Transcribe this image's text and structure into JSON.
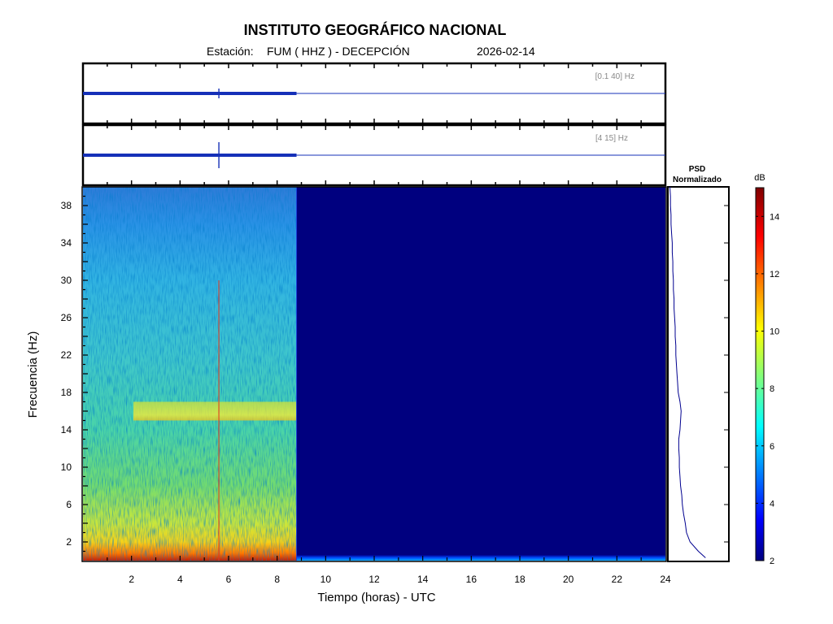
{
  "header": {
    "title": "INSTITUTO GEOGRÁFICO NACIONAL",
    "station_label": "Estación:",
    "station": "FUM ( HHZ ) - DECEPCIÓN",
    "date": "2026-02-14"
  },
  "chart_data": [
    {
      "type": "line",
      "name": "waveform-broadband",
      "band_label": "[0.1 40] Hz",
      "x_range": [
        0,
        24
      ],
      "data_end_hours": 8.8,
      "event_hours": 5.6
    },
    {
      "type": "line",
      "name": "waveform-filtered",
      "band_label": "[4 15] Hz",
      "x_range": [
        0,
        24
      ],
      "data_end_hours": 8.8,
      "event_hours": 5.6
    },
    {
      "type": "heatmap",
      "name": "spectrogram",
      "xlabel": "Tiempo (horas) - UTC",
      "ylabel": "Frecuencia  (Hz)",
      "xlim": [
        0,
        24
      ],
      "ylim": [
        0,
        40
      ],
      "x_ticks": [
        2,
        4,
        6,
        8,
        10,
        12,
        14,
        16,
        18,
        20,
        22,
        24
      ],
      "y_ticks": [
        2,
        6,
        10,
        14,
        18,
        22,
        26,
        30,
        34,
        38
      ],
      "data_end_hours": 8.8,
      "event_hours": 5.6,
      "highlights": [
        {
          "freq_range": [
            15,
            17
          ],
          "level": "high"
        },
        {
          "freq_range": [
            0,
            4
          ],
          "level": "very-high"
        }
      ]
    },
    {
      "type": "line",
      "name": "psd",
      "title_line1": "PSD",
      "title_line2": "Normalizado",
      "freq": [
        0.3,
        1,
        2,
        3,
        4,
        5,
        6,
        7,
        8,
        9,
        10,
        11,
        12,
        13,
        14,
        15,
        16,
        17,
        18,
        19,
        20,
        21,
        22,
        23,
        24,
        25,
        26,
        27,
        28,
        29,
        30,
        31,
        32,
        33,
        34,
        35,
        36,
        37,
        38,
        39,
        40
      ],
      "value": [
        0.62,
        0.5,
        0.36,
        0.3,
        0.28,
        0.25,
        0.23,
        0.22,
        0.2,
        0.19,
        0.18,
        0.18,
        0.17,
        0.17,
        0.19,
        0.2,
        0.21,
        0.19,
        0.16,
        0.15,
        0.14,
        0.13,
        0.12,
        0.12,
        0.11,
        0.11,
        0.1,
        0.09,
        0.09,
        0.08,
        0.08,
        0.07,
        0.07,
        0.06,
        0.06,
        0.05,
        0.04,
        0.04,
        0.03,
        0.03,
        0.02
      ]
    },
    {
      "type": "heatmap",
      "name": "colorbar",
      "unit": "dB",
      "range": [
        2,
        15
      ],
      "ticks": [
        2,
        4,
        6,
        8,
        10,
        12,
        14
      ]
    }
  ]
}
